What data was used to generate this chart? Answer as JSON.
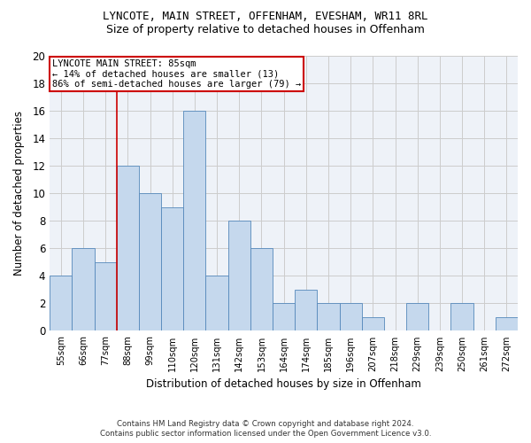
{
  "title1": "LYNCOTE, MAIN STREET, OFFENHAM, EVESHAM, WR11 8RL",
  "title2": "Size of property relative to detached houses in Offenham",
  "xlabel": "Distribution of detached houses by size in Offenham",
  "ylabel": "Number of detached properties",
  "bar_labels": [
    "55sqm",
    "66sqm",
    "77sqm",
    "88sqm",
    "99sqm",
    "110sqm",
    "120sqm",
    "131sqm",
    "142sqm",
    "153sqm",
    "164sqm",
    "174sqm",
    "185sqm",
    "196sqm",
    "207sqm",
    "218sqm",
    "229sqm",
    "239sqm",
    "250sqm",
    "261sqm",
    "272sqm"
  ],
  "values": [
    4,
    6,
    5,
    12,
    10,
    9,
    16,
    4,
    8,
    6,
    2,
    3,
    2,
    2,
    1,
    0,
    2,
    0,
    2,
    0,
    1
  ],
  "bar_color": "#c5d8ed",
  "bar_edge_color": "#5588bb",
  "annotation_text_line1": "LYNCOTE MAIN STREET: 85sqm",
  "annotation_text_line2": "← 14% of detached houses are smaller (13)",
  "annotation_text_line3": "86% of semi-detached houses are larger (79) →",
  "annotation_box_color": "#ffffff",
  "annotation_box_edge": "#cc0000",
  "vline_color": "#cc0000",
  "footer1": "Contains HM Land Registry data © Crown copyright and database right 2024.",
  "footer2": "Contains public sector information licensed under the Open Government Licence v3.0.",
  "ylim": [
    0,
    20
  ],
  "yticks": [
    0,
    2,
    4,
    6,
    8,
    10,
    12,
    14,
    16,
    18,
    20
  ],
  "grid_color": "#cccccc",
  "bg_color": "#eef2f8"
}
